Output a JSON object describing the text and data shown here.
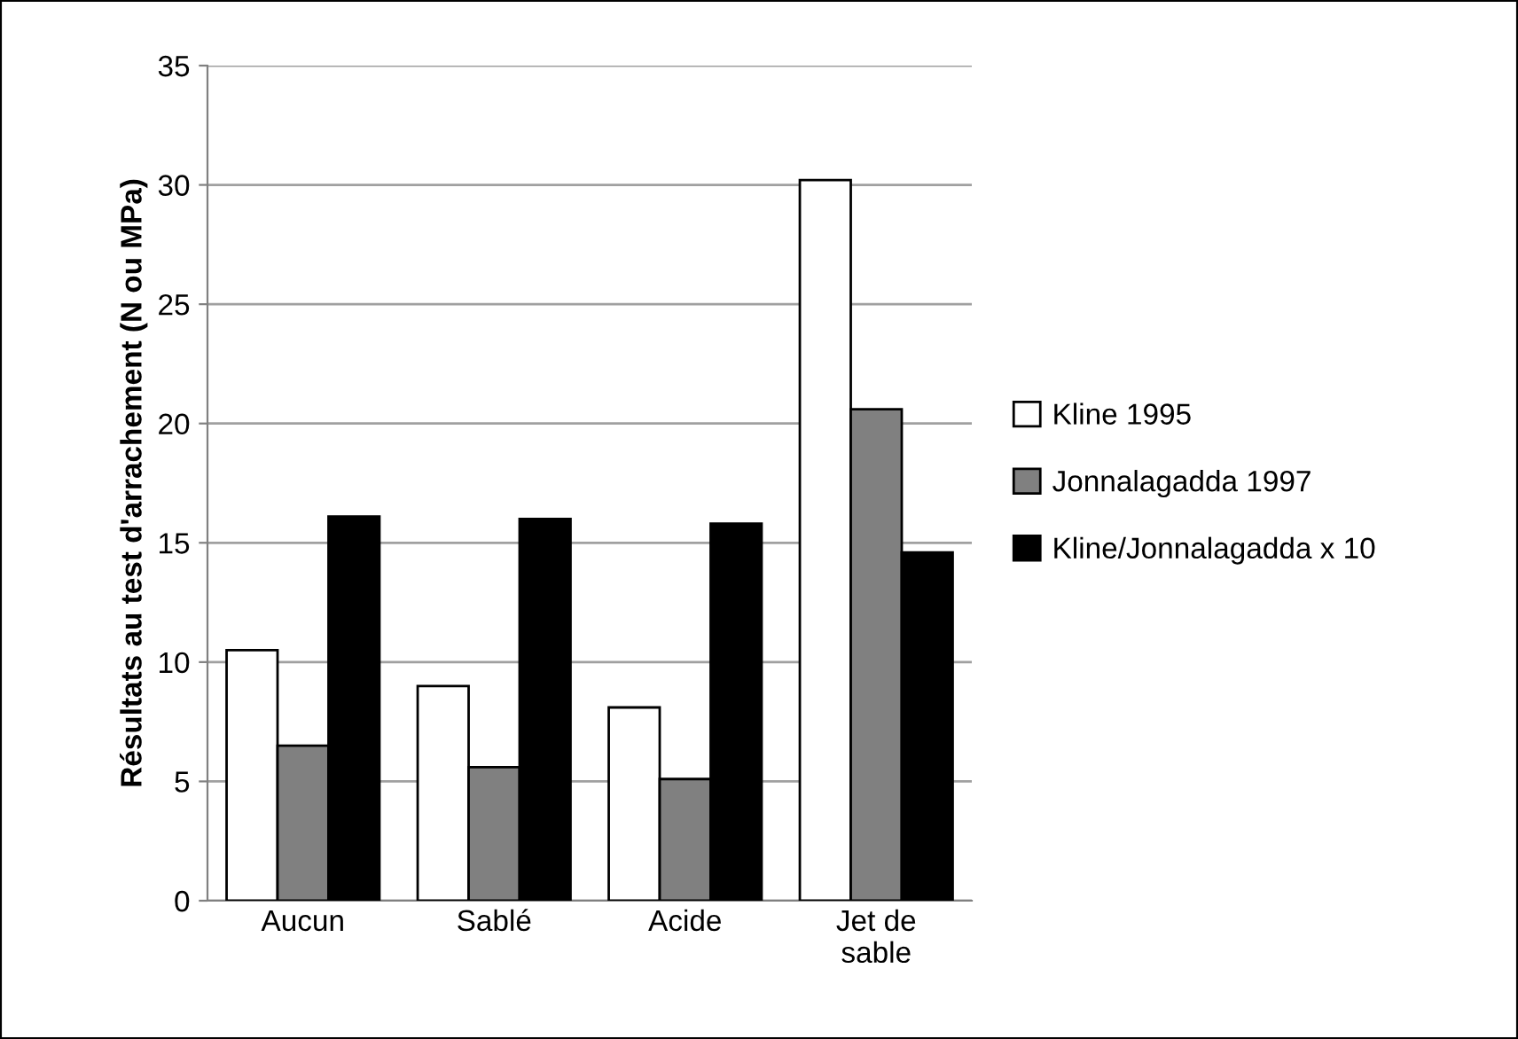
{
  "chart_data": {
    "type": "bar",
    "ylabel": "Résultats au test d'arrachement (N ou MPa)",
    "categories": [
      "Aucun",
      "Sablé",
      "Acide",
      "Jet de\nsable"
    ],
    "series": [
      {
        "name": "Kline 1995",
        "color": "#ffffff",
        "values": [
          10.5,
          9.0,
          8.1,
          30.2
        ]
      },
      {
        "name": "Jonnalagadda 1997",
        "color": "#808080",
        "values": [
          6.5,
          5.6,
          5.1,
          20.6
        ]
      },
      {
        "name": "Kline/Jonnalagadda x 10",
        "color": "#000000",
        "values": [
          16.1,
          16.0,
          15.8,
          14.6
        ]
      }
    ],
    "ylim": [
      0,
      35
    ],
    "yticks": [
      0,
      5,
      10,
      15,
      20,
      25,
      30,
      35
    ],
    "grid": "y",
    "legend": "right"
  }
}
